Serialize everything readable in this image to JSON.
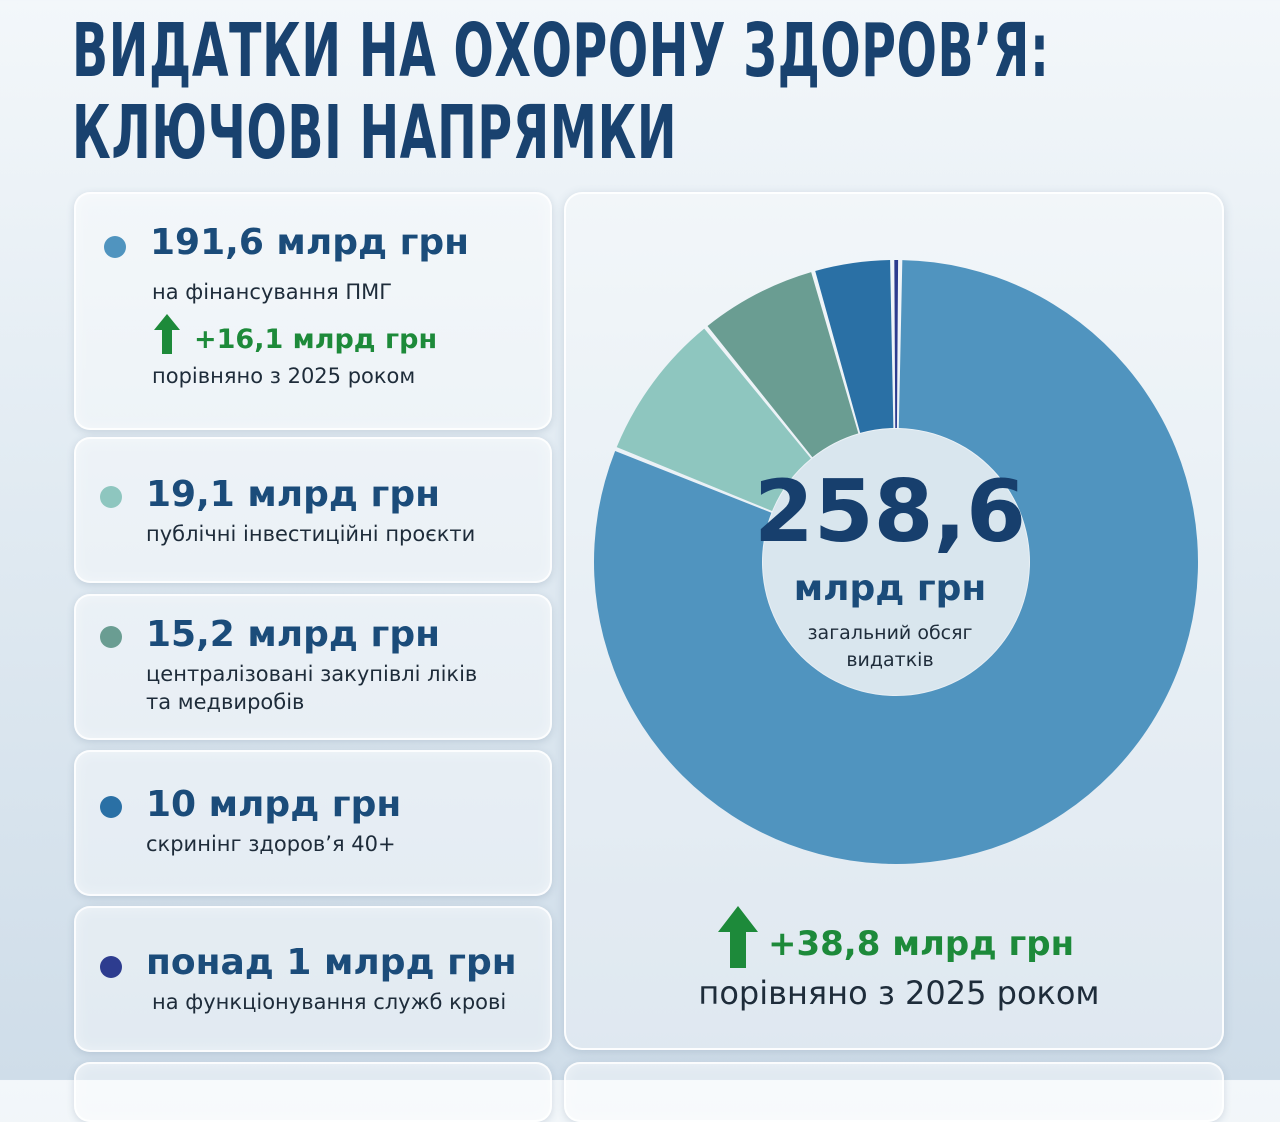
{
  "title": {
    "line1": "ВИДАТКИ НА ОХОРОНУ ЗДОРОВ’Я:",
    "line2": "КЛЮЧОВІ НАПРЯМКИ"
  },
  "items": [
    {
      "amount": "191,6 млрд грн",
      "desc": [
        "на фінансування ПМГ"
      ],
      "color": "#5094bf",
      "delta": "+16,1 млрд грн",
      "delta_caption": "порівняно з 2025 роком"
    },
    {
      "amount": "19,1 млрд грн",
      "desc": [
        "публічні інвестиційні проєкти"
      ],
      "color": "#8ec6bf"
    },
    {
      "amount": "15,2 млрд грн",
      "desc": [
        "централізовані закупівлі ліків",
        "та медвиробів"
      ],
      "color": "#6a9d92"
    },
    {
      "amount": "10 млрд грн",
      "desc": [
        "скринінг здоров’я 40+"
      ],
      "color": "#2a70a5"
    },
    {
      "amount": "понад 1 млрд грн",
      "desc": [
        "на функціонування служб крові"
      ],
      "color": "#2d3c8f"
    }
  ],
  "center": {
    "value": "258,6",
    "unit": "млрд грн",
    "caption_line1": "загальний обсяг",
    "caption_line2": "видатків"
  },
  "total_delta": "+38,8 млрд грн",
  "total_compare": "порівняно з 2025 роком",
  "colors": {
    "positive": "#1d8a3a",
    "heading": "#19426f"
  },
  "chart_data": {
    "type": "pie",
    "categories": [
      "на фінансування ПМГ",
      "публічні інвестиційні проєкти",
      "централізовані закупівлі ліків та медвиробів",
      "скринінг здоров’я 40+",
      "на функціонування служб крові"
    ],
    "values": [
      191.6,
      19.1,
      15.2,
      10,
      1
    ],
    "colors": [
      "#5094bf",
      "#8ec6bf",
      "#6a9d92",
      "#2a70a5",
      "#2d3c8f"
    ],
    "total": 258.6,
    "donut": true
  }
}
